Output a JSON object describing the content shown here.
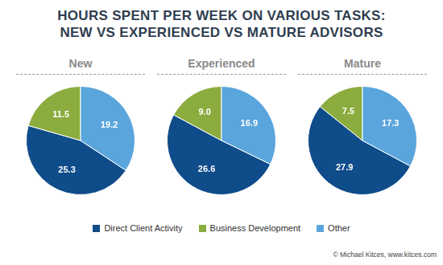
{
  "title": "HOURS SPENT PER WEEK ON VARIOUS TASKS:\nNEW VS EXPERIENCED VS MATURE ADVISORS",
  "annotations": [
    "© Michael Kitces, www.kitces.com"
  ],
  "chart_data": [
    {
      "type": "pie",
      "title": "New",
      "categories": [
        "Direct Client Activity",
        "Business Development",
        "Other"
      ],
      "values": [
        25.3,
        11.5,
        19.2
      ],
      "value_labels": [
        "25.3",
        "11.5",
        "19.2"
      ],
      "colors": [
        "#0f4c8a",
        "#8bac3e",
        "#5aa5dc"
      ],
      "data_labels": true,
      "legend": "bottom"
    },
    {
      "type": "pie",
      "title": "Experienced",
      "categories": [
        "Direct Client Activity",
        "Business Development",
        "Other"
      ],
      "values": [
        26.6,
        9.0,
        16.9
      ],
      "value_labels": [
        "26.6",
        "9.0",
        "16.9"
      ],
      "colors": [
        "#0f4c8a",
        "#8bac3e",
        "#5aa5dc"
      ],
      "data_labels": true,
      "legend": "bottom"
    },
    {
      "type": "pie",
      "title": "Mature",
      "categories": [
        "Direct Client Activity",
        "Business Development",
        "Other"
      ],
      "values": [
        27.9,
        7.5,
        17.3
      ],
      "value_labels": [
        "27.9",
        "7.5",
        "17.3"
      ],
      "colors": [
        "#0f4c8a",
        "#8bac3e",
        "#5aa5dc"
      ],
      "data_labels": true,
      "legend": "bottom"
    }
  ]
}
